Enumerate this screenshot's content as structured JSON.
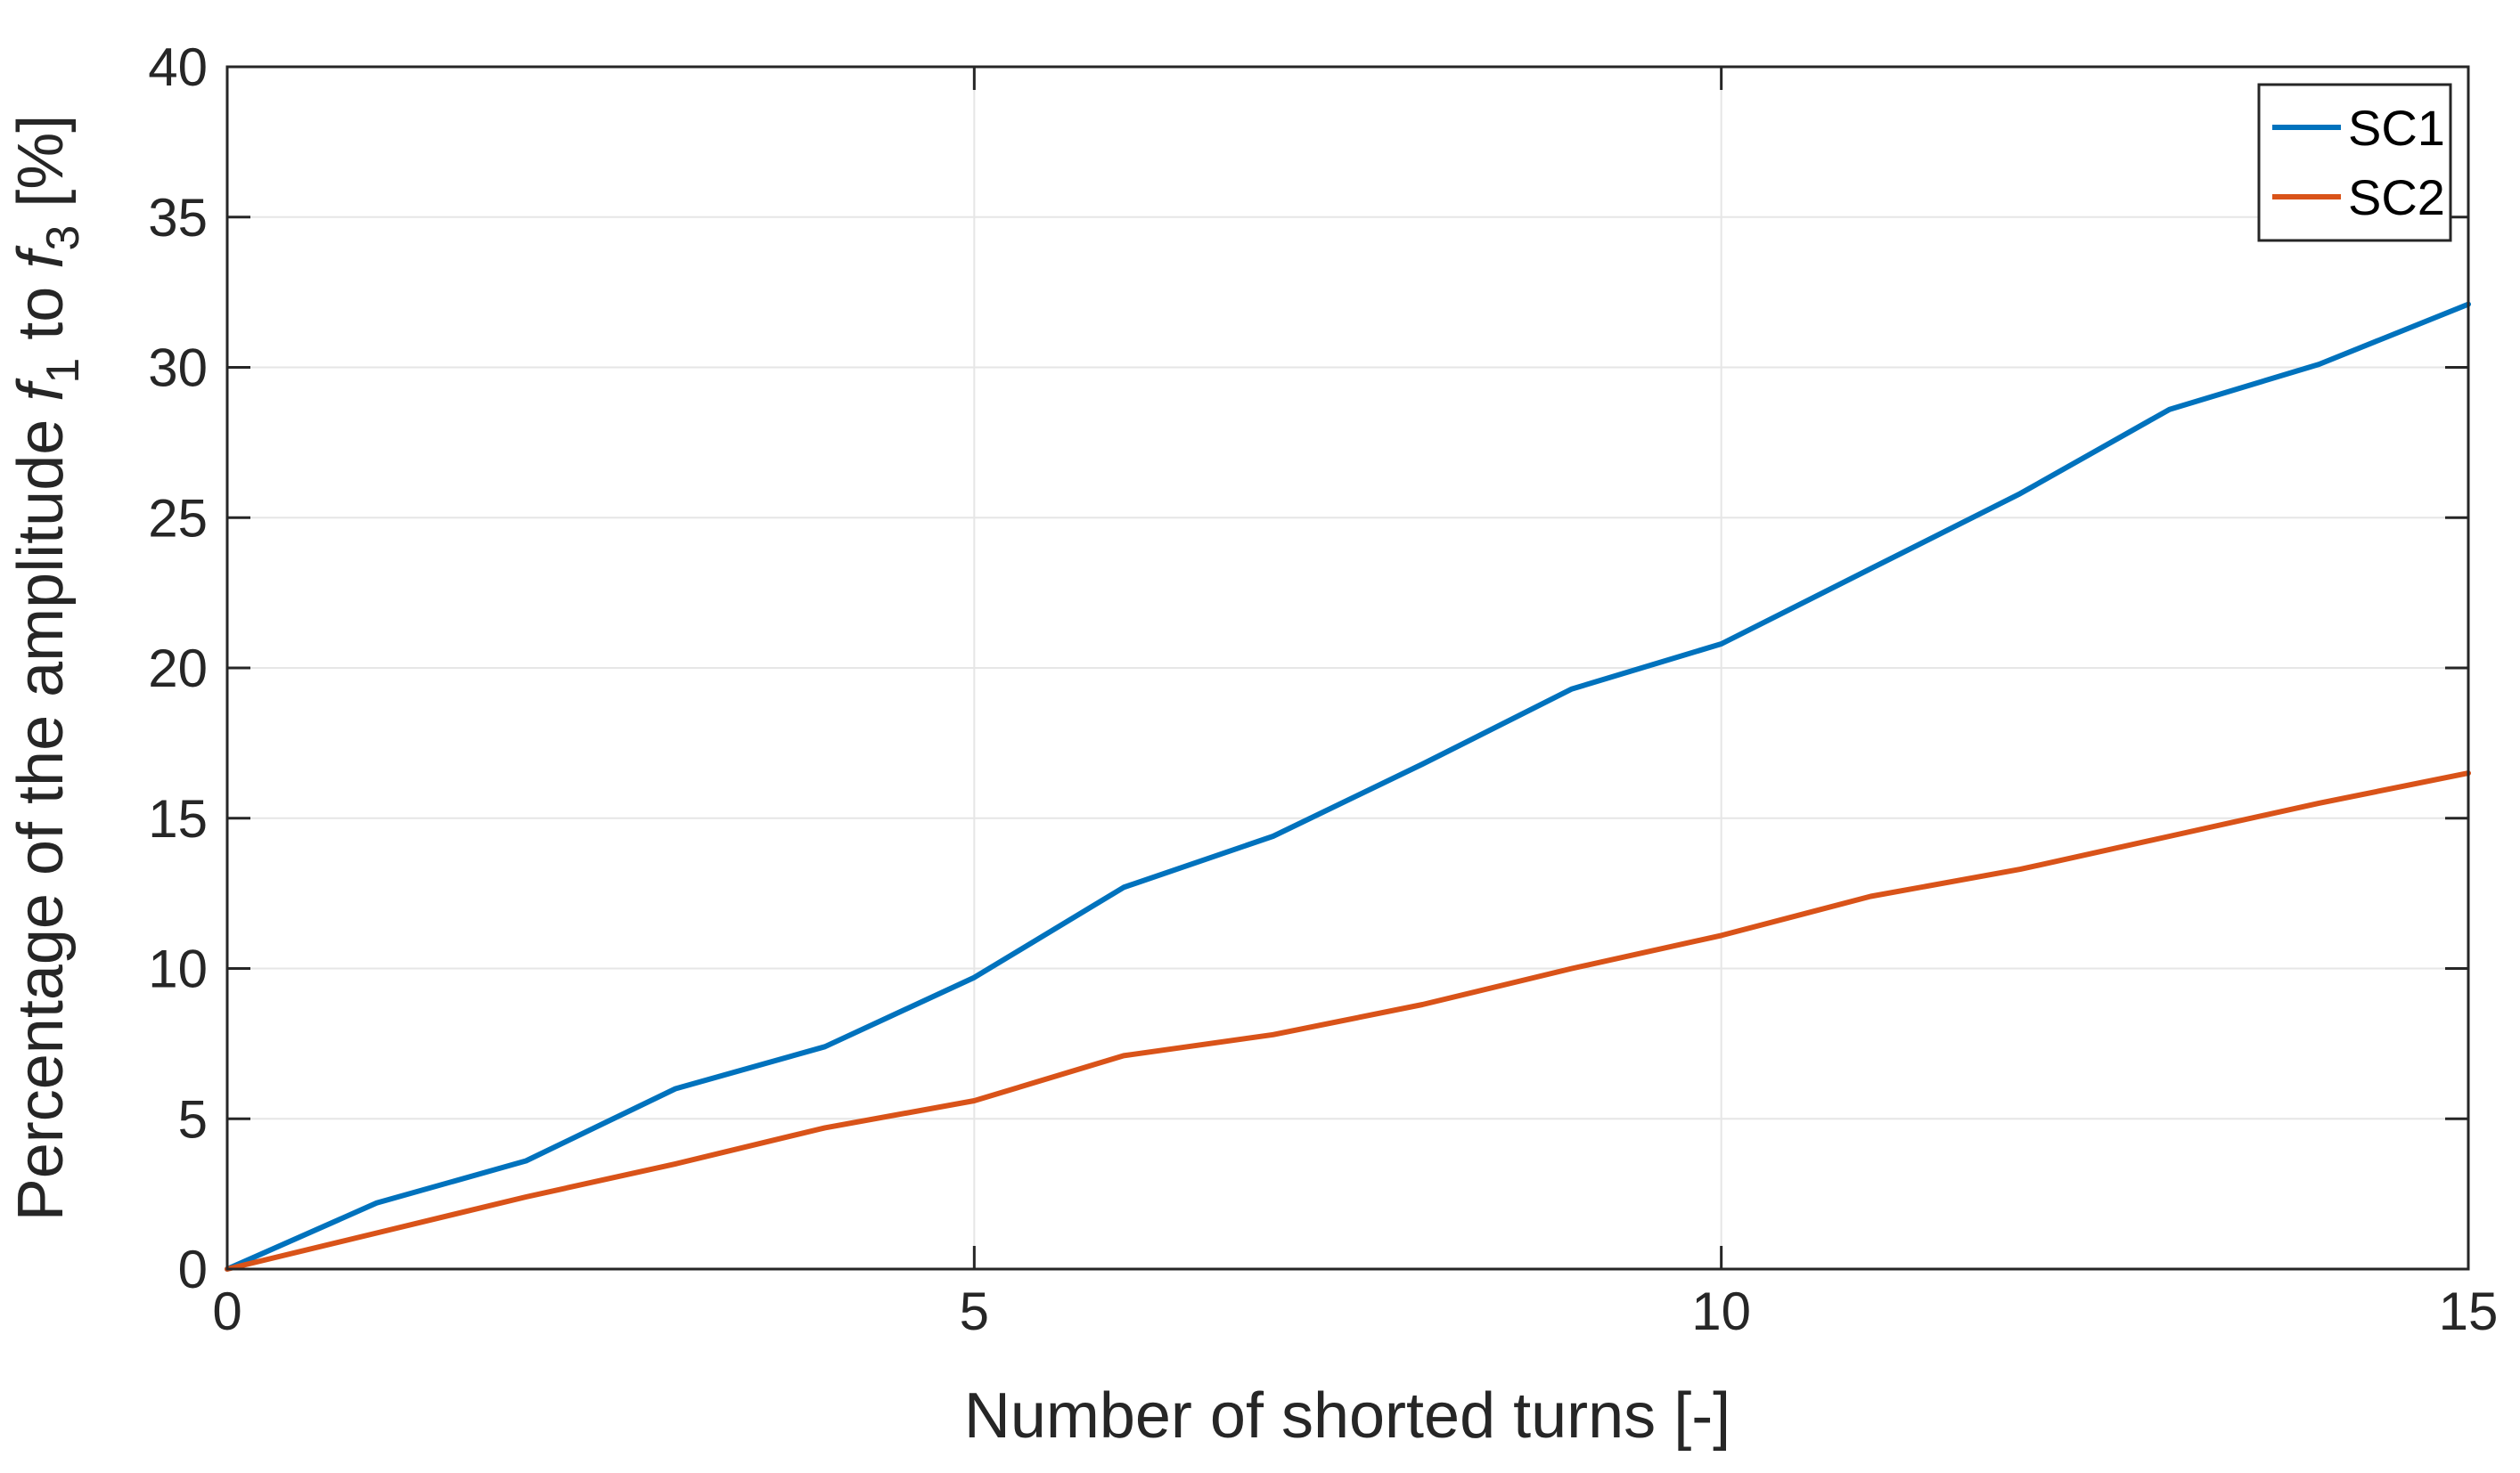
{
  "chart_data": {
    "type": "line",
    "xlabel": "Number of shorted turns [-]",
    "ylabel": {
      "prefix": "Percentage of the amplitude ",
      "var1": "f",
      "sub1": "1",
      "mid": " to ",
      "var2": "f",
      "sub2": "3",
      "suffix": " [%]"
    },
    "xlim": [
      0,
      15
    ],
    "ylim": [
      0,
      40
    ],
    "xticks": [
      0,
      5,
      10,
      15
    ],
    "yticks": [
      0,
      5,
      10,
      15,
      20,
      25,
      30,
      35,
      40
    ],
    "grid": true,
    "legend_position": "top-right",
    "x": [
      0,
      1,
      2,
      3,
      4,
      5,
      6,
      7,
      8,
      9,
      10,
      11,
      12,
      13,
      14,
      15
    ],
    "series": [
      {
        "name": "SC1",
        "color": "#0072BD",
        "values": [
          0,
          2.2,
          3.6,
          6.0,
          7.4,
          9.7,
          12.7,
          14.4,
          16.8,
          19.3,
          20.8,
          23.3,
          25.8,
          28.6,
          30.1,
          32.1
        ]
      },
      {
        "name": "SC2",
        "color": "#D95319",
        "values": [
          0,
          1.2,
          2.4,
          3.5,
          4.7,
          5.6,
          7.1,
          7.8,
          8.8,
          10.0,
          11.1,
          12.4,
          13.3,
          14.4,
          15.5,
          16.5
        ]
      }
    ]
  }
}
